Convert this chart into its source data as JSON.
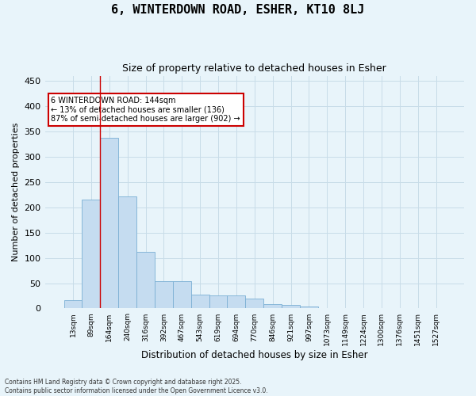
{
  "title": "6, WINTERDOWN ROAD, ESHER, KT10 8LJ",
  "subtitle": "Size of property relative to detached houses in Esher",
  "xlabel": "Distribution of detached houses by size in Esher",
  "ylabel": "Number of detached properties",
  "categories": [
    "13sqm",
    "89sqm",
    "164sqm",
    "240sqm",
    "316sqm",
    "392sqm",
    "467sqm",
    "543sqm",
    "619sqm",
    "694sqm",
    "770sqm",
    "846sqm",
    "921sqm",
    "997sqm",
    "1073sqm",
    "1149sqm",
    "1224sqm",
    "1300sqm",
    "1376sqm",
    "1451sqm",
    "1527sqm"
  ],
  "values": [
    16,
    215,
    338,
    222,
    112,
    54,
    54,
    27,
    26,
    25,
    19,
    8,
    7,
    4,
    1,
    0,
    0,
    0,
    0,
    0,
    0
  ],
  "bar_color": "#C5DCF0",
  "bar_edge_color": "#7BAFD4",
  "grid_color": "#C8DCE8",
  "background_color": "#E8F4FA",
  "vline_x": 1.5,
  "vline_color": "#CC0000",
  "annotation_text": "6 WINTERDOWN ROAD: 144sqm\n← 13% of detached houses are smaller (136)\n87% of semi-detached houses are larger (902) →",
  "annotation_box_color": "white",
  "annotation_box_edge_color": "#CC0000",
  "footer": "Contains HM Land Registry data © Crown copyright and database right 2025.\nContains public sector information licensed under the Open Government Licence v3.0.",
  "ylim": [
    0,
    460
  ],
  "yticks": [
    0,
    50,
    100,
    150,
    200,
    250,
    300,
    350,
    400,
    450
  ]
}
